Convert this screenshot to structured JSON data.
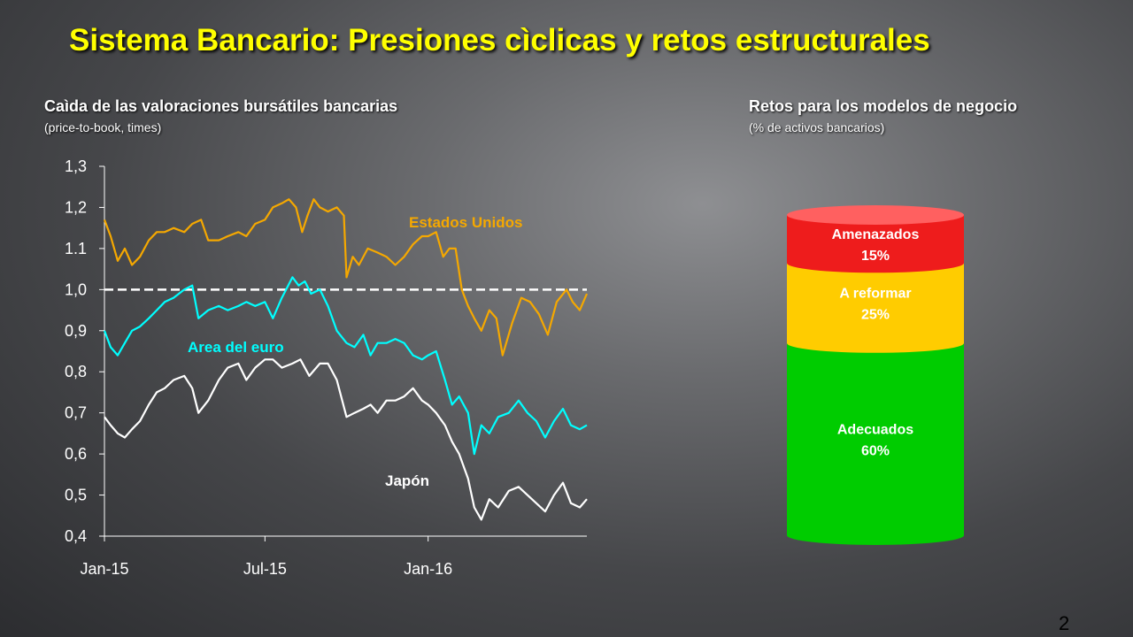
{
  "title": "Sistema Bancario: Presiones cìclicas y retos estructurales",
  "left_panel": {
    "heading": "Caìda de las valoraciones bursátiles bancarias",
    "subheading": "(price-to-book, times)"
  },
  "right_panel": {
    "heading": "Retos para los modelos de negocio",
    "subheading": "(% de activos bancarios)"
  },
  "page_number": "2",
  "colors": {
    "title": "#ffff00",
    "us": "#f5a800",
    "euro": "#00ffff",
    "japan": "#ffffff",
    "threatened": "#ee1c1c",
    "reform": "#ffcc00",
    "adequate": "#00cc00"
  },
  "chart_data": [
    {
      "type": "line",
      "title": "Caìda de las valoraciones bursátiles bancarias",
      "ylabel": "(price-to-book, times)",
      "ylim": [
        0.4,
        1.3
      ],
      "y_ticks": [
        "0,4",
        "0,5",
        "0,6",
        "0,7",
        "0,8",
        "0,9",
        "1,0",
        "1.1",
        "1,2",
        "1,3"
      ],
      "x_ticks": [
        "Jan-15",
        "Jul-15",
        "Jan-16"
      ],
      "reference_line": {
        "y": 1.0,
        "style": "dashed",
        "color": "#ffffff"
      },
      "series": [
        {
          "name": "Estados Unidos",
          "color": "#f5a800",
          "points": [
            [
              "2015-01-01",
              1.17
            ],
            [
              "2015-01-08",
              1.13
            ],
            [
              "2015-01-16",
              1.07
            ],
            [
              "2015-01-24",
              1.1
            ],
            [
              "2015-02-01",
              1.06
            ],
            [
              "2015-02-10",
              1.08
            ],
            [
              "2015-02-20",
              1.12
            ],
            [
              "2015-03-01",
              1.14
            ],
            [
              "2015-03-10",
              1.14
            ],
            [
              "2015-03-20",
              1.15
            ],
            [
              "2015-04-01",
              1.14
            ],
            [
              "2015-04-10",
              1.16
            ],
            [
              "2015-04-20",
              1.17
            ],
            [
              "2015-04-28",
              1.12
            ],
            [
              "2015-05-10",
              1.12
            ],
            [
              "2015-05-20",
              1.13
            ],
            [
              "2015-06-01",
              1.14
            ],
            [
              "2015-06-10",
              1.13
            ],
            [
              "2015-06-20",
              1.16
            ],
            [
              "2015-07-01",
              1.17
            ],
            [
              "2015-07-10",
              1.2
            ],
            [
              "2015-07-20",
              1.21
            ],
            [
              "2015-07-28",
              1.22
            ],
            [
              "2015-08-05",
              1.2
            ],
            [
              "2015-08-12",
              1.14
            ],
            [
              "2015-08-18",
              1.18
            ],
            [
              "2015-08-25",
              1.22
            ],
            [
              "2015-09-01",
              1.2
            ],
            [
              "2015-09-10",
              1.19
            ],
            [
              "2015-09-20",
              1.2
            ],
            [
              "2015-09-28",
              1.18
            ],
            [
              "2015-10-01",
              1.03
            ],
            [
              "2015-10-08",
              1.08
            ],
            [
              "2015-10-15",
              1.06
            ],
            [
              "2015-10-25",
              1.1
            ],
            [
              "2015-11-05",
              1.09
            ],
            [
              "2015-11-15",
              1.08
            ],
            [
              "2015-11-25",
              1.06
            ],
            [
              "2015-12-05",
              1.08
            ],
            [
              "2015-12-15",
              1.11
            ],
            [
              "2015-12-25",
              1.13
            ],
            [
              "2016-01-01",
              1.13
            ],
            [
              "2016-01-10",
              1.14
            ],
            [
              "2016-01-18",
              1.08
            ],
            [
              "2016-01-25",
              1.1
            ],
            [
              "2016-02-01",
              1.1
            ],
            [
              "2016-02-08",
              1.0
            ],
            [
              "2016-02-15",
              0.96
            ],
            [
              "2016-02-22",
              0.93
            ],
            [
              "2016-03-01",
              0.9
            ],
            [
              "2016-03-10",
              0.95
            ],
            [
              "2016-03-18",
              0.93
            ],
            [
              "2016-03-25",
              0.84
            ],
            [
              "2016-04-05",
              0.92
            ],
            [
              "2016-04-15",
              0.98
            ],
            [
              "2016-04-25",
              0.97
            ],
            [
              "2016-05-05",
              0.94
            ],
            [
              "2016-05-15",
              0.89
            ],
            [
              "2016-05-25",
              0.97
            ],
            [
              "2016-06-05",
              1.0
            ],
            [
              "2016-06-12",
              0.97
            ],
            [
              "2016-06-20",
              0.95
            ],
            [
              "2016-06-28",
              0.99
            ]
          ]
        },
        {
          "name": "Area del euro",
          "color": "#00ffff",
          "points": [
            [
              "2015-01-01",
              0.9
            ],
            [
              "2015-01-08",
              0.86
            ],
            [
              "2015-01-16",
              0.84
            ],
            [
              "2015-01-24",
              0.87
            ],
            [
              "2015-02-01",
              0.9
            ],
            [
              "2015-02-10",
              0.91
            ],
            [
              "2015-02-20",
              0.93
            ],
            [
              "2015-03-01",
              0.95
            ],
            [
              "2015-03-10",
              0.97
            ],
            [
              "2015-03-20",
              0.98
            ],
            [
              "2015-04-01",
              1.0
            ],
            [
              "2015-04-10",
              1.01
            ],
            [
              "2015-04-17",
              0.93
            ],
            [
              "2015-04-28",
              0.95
            ],
            [
              "2015-05-10",
              0.96
            ],
            [
              "2015-05-20",
              0.95
            ],
            [
              "2015-06-01",
              0.96
            ],
            [
              "2015-06-10",
              0.97
            ],
            [
              "2015-06-20",
              0.96
            ],
            [
              "2015-07-01",
              0.97
            ],
            [
              "2015-07-10",
              0.93
            ],
            [
              "2015-07-20",
              0.98
            ],
            [
              "2015-08-01",
              1.03
            ],
            [
              "2015-08-08",
              1.01
            ],
            [
              "2015-08-15",
              1.02
            ],
            [
              "2015-08-22",
              0.99
            ],
            [
              "2015-09-01",
              1.0
            ],
            [
              "2015-09-10",
              0.96
            ],
            [
              "2015-09-20",
              0.9
            ],
            [
              "2015-10-01",
              0.87
            ],
            [
              "2015-10-10",
              0.86
            ],
            [
              "2015-10-20",
              0.89
            ],
            [
              "2015-10-28",
              0.84
            ],
            [
              "2015-11-05",
              0.87
            ],
            [
              "2015-11-15",
              0.87
            ],
            [
              "2015-11-25",
              0.88
            ],
            [
              "2015-12-05",
              0.87
            ],
            [
              "2015-12-15",
              0.84
            ],
            [
              "2015-12-25",
              0.83
            ],
            [
              "2016-01-01",
              0.84
            ],
            [
              "2016-01-10",
              0.85
            ],
            [
              "2016-01-20",
              0.78
            ],
            [
              "2016-01-28",
              0.72
            ],
            [
              "2016-02-05",
              0.74
            ],
            [
              "2016-02-15",
              0.7
            ],
            [
              "2016-02-22",
              0.6
            ],
            [
              "2016-03-01",
              0.67
            ],
            [
              "2016-03-10",
              0.65
            ],
            [
              "2016-03-20",
              0.69
            ],
            [
              "2016-04-01",
              0.7
            ],
            [
              "2016-04-12",
              0.73
            ],
            [
              "2016-04-22",
              0.7
            ],
            [
              "2016-05-02",
              0.68
            ],
            [
              "2016-05-12",
              0.64
            ],
            [
              "2016-05-22",
              0.68
            ],
            [
              "2016-06-01",
              0.71
            ],
            [
              "2016-06-10",
              0.67
            ],
            [
              "2016-06-20",
              0.66
            ],
            [
              "2016-06-28",
              0.67
            ]
          ]
        },
        {
          "name": "Japón",
          "color": "#ffffff",
          "points": [
            [
              "2015-01-01",
              0.69
            ],
            [
              "2015-01-08",
              0.67
            ],
            [
              "2015-01-16",
              0.65
            ],
            [
              "2015-01-24",
              0.64
            ],
            [
              "2015-02-01",
              0.66
            ],
            [
              "2015-02-10",
              0.68
            ],
            [
              "2015-02-20",
              0.72
            ],
            [
              "2015-03-01",
              0.75
            ],
            [
              "2015-03-10",
              0.76
            ],
            [
              "2015-03-20",
              0.78
            ],
            [
              "2015-04-01",
              0.79
            ],
            [
              "2015-04-10",
              0.76
            ],
            [
              "2015-04-17",
              0.7
            ],
            [
              "2015-04-28",
              0.73
            ],
            [
              "2015-05-10",
              0.78
            ],
            [
              "2015-05-20",
              0.81
            ],
            [
              "2015-06-01",
              0.82
            ],
            [
              "2015-06-10",
              0.78
            ],
            [
              "2015-06-20",
              0.81
            ],
            [
              "2015-07-01",
              0.83
            ],
            [
              "2015-07-10",
              0.83
            ],
            [
              "2015-07-20",
              0.81
            ],
            [
              "2015-08-01",
              0.82
            ],
            [
              "2015-08-10",
              0.83
            ],
            [
              "2015-08-20",
              0.79
            ],
            [
              "2015-09-01",
              0.82
            ],
            [
              "2015-09-10",
              0.82
            ],
            [
              "2015-09-20",
              0.78
            ],
            [
              "2015-10-01",
              0.69
            ],
            [
              "2015-10-10",
              0.7
            ],
            [
              "2015-10-20",
              0.71
            ],
            [
              "2015-10-28",
              0.72
            ],
            [
              "2015-11-05",
              0.7
            ],
            [
              "2015-11-15",
              0.73
            ],
            [
              "2015-11-25",
              0.73
            ],
            [
              "2015-12-05",
              0.74
            ],
            [
              "2015-12-15",
              0.76
            ],
            [
              "2015-12-25",
              0.73
            ],
            [
              "2016-01-01",
              0.72
            ],
            [
              "2016-01-10",
              0.7
            ],
            [
              "2016-01-20",
              0.67
            ],
            [
              "2016-01-28",
              0.63
            ],
            [
              "2016-02-05",
              0.6
            ],
            [
              "2016-02-15",
              0.54
            ],
            [
              "2016-02-22",
              0.47
            ],
            [
              "2016-03-01",
              0.44
            ],
            [
              "2016-03-10",
              0.49
            ],
            [
              "2016-03-20",
              0.47
            ],
            [
              "2016-04-01",
              0.51
            ],
            [
              "2016-04-12",
              0.52
            ],
            [
              "2016-04-22",
              0.5
            ],
            [
              "2016-05-02",
              0.48
            ],
            [
              "2016-05-12",
              0.46
            ],
            [
              "2016-05-22",
              0.5
            ],
            [
              "2016-06-01",
              0.53
            ],
            [
              "2016-06-10",
              0.48
            ],
            [
              "2016-06-20",
              0.47
            ],
            [
              "2016-06-28",
              0.49
            ]
          ]
        }
      ]
    },
    {
      "type": "stacked-bar",
      "title": "Retos para los modelos de negocio",
      "ylabel": "(% de activos bancarios)",
      "series": [
        {
          "name": "Amenazados",
          "value": 15,
          "label": "15%",
          "color": "#ee1c1c"
        },
        {
          "name": "A reformar",
          "value": 25,
          "label": "25%",
          "color": "#ffcc00"
        },
        {
          "name": "Adecuados",
          "value": 60,
          "label": "60%",
          "color": "#00cc00"
        }
      ]
    }
  ]
}
